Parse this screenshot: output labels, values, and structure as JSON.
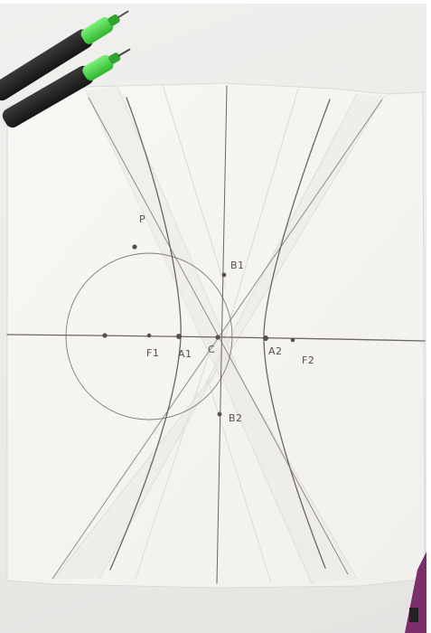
{
  "labels": {
    "p": "P",
    "b1": "B1",
    "b2": "B2",
    "f1": "F1",
    "a1": "A1",
    "c": "C",
    "a2": "A2",
    "f2": "F2"
  },
  "objects": {
    "pens": "green-capped-pens-icon",
    "paper": "folded-tracing-paper-icon"
  },
  "colors": {
    "background": "#ecebe8",
    "paper": "#f7f6f3",
    "pencil": "#6b6661",
    "pen_cap": "#3fcf3f",
    "pen_body": "#2a2a2a"
  }
}
